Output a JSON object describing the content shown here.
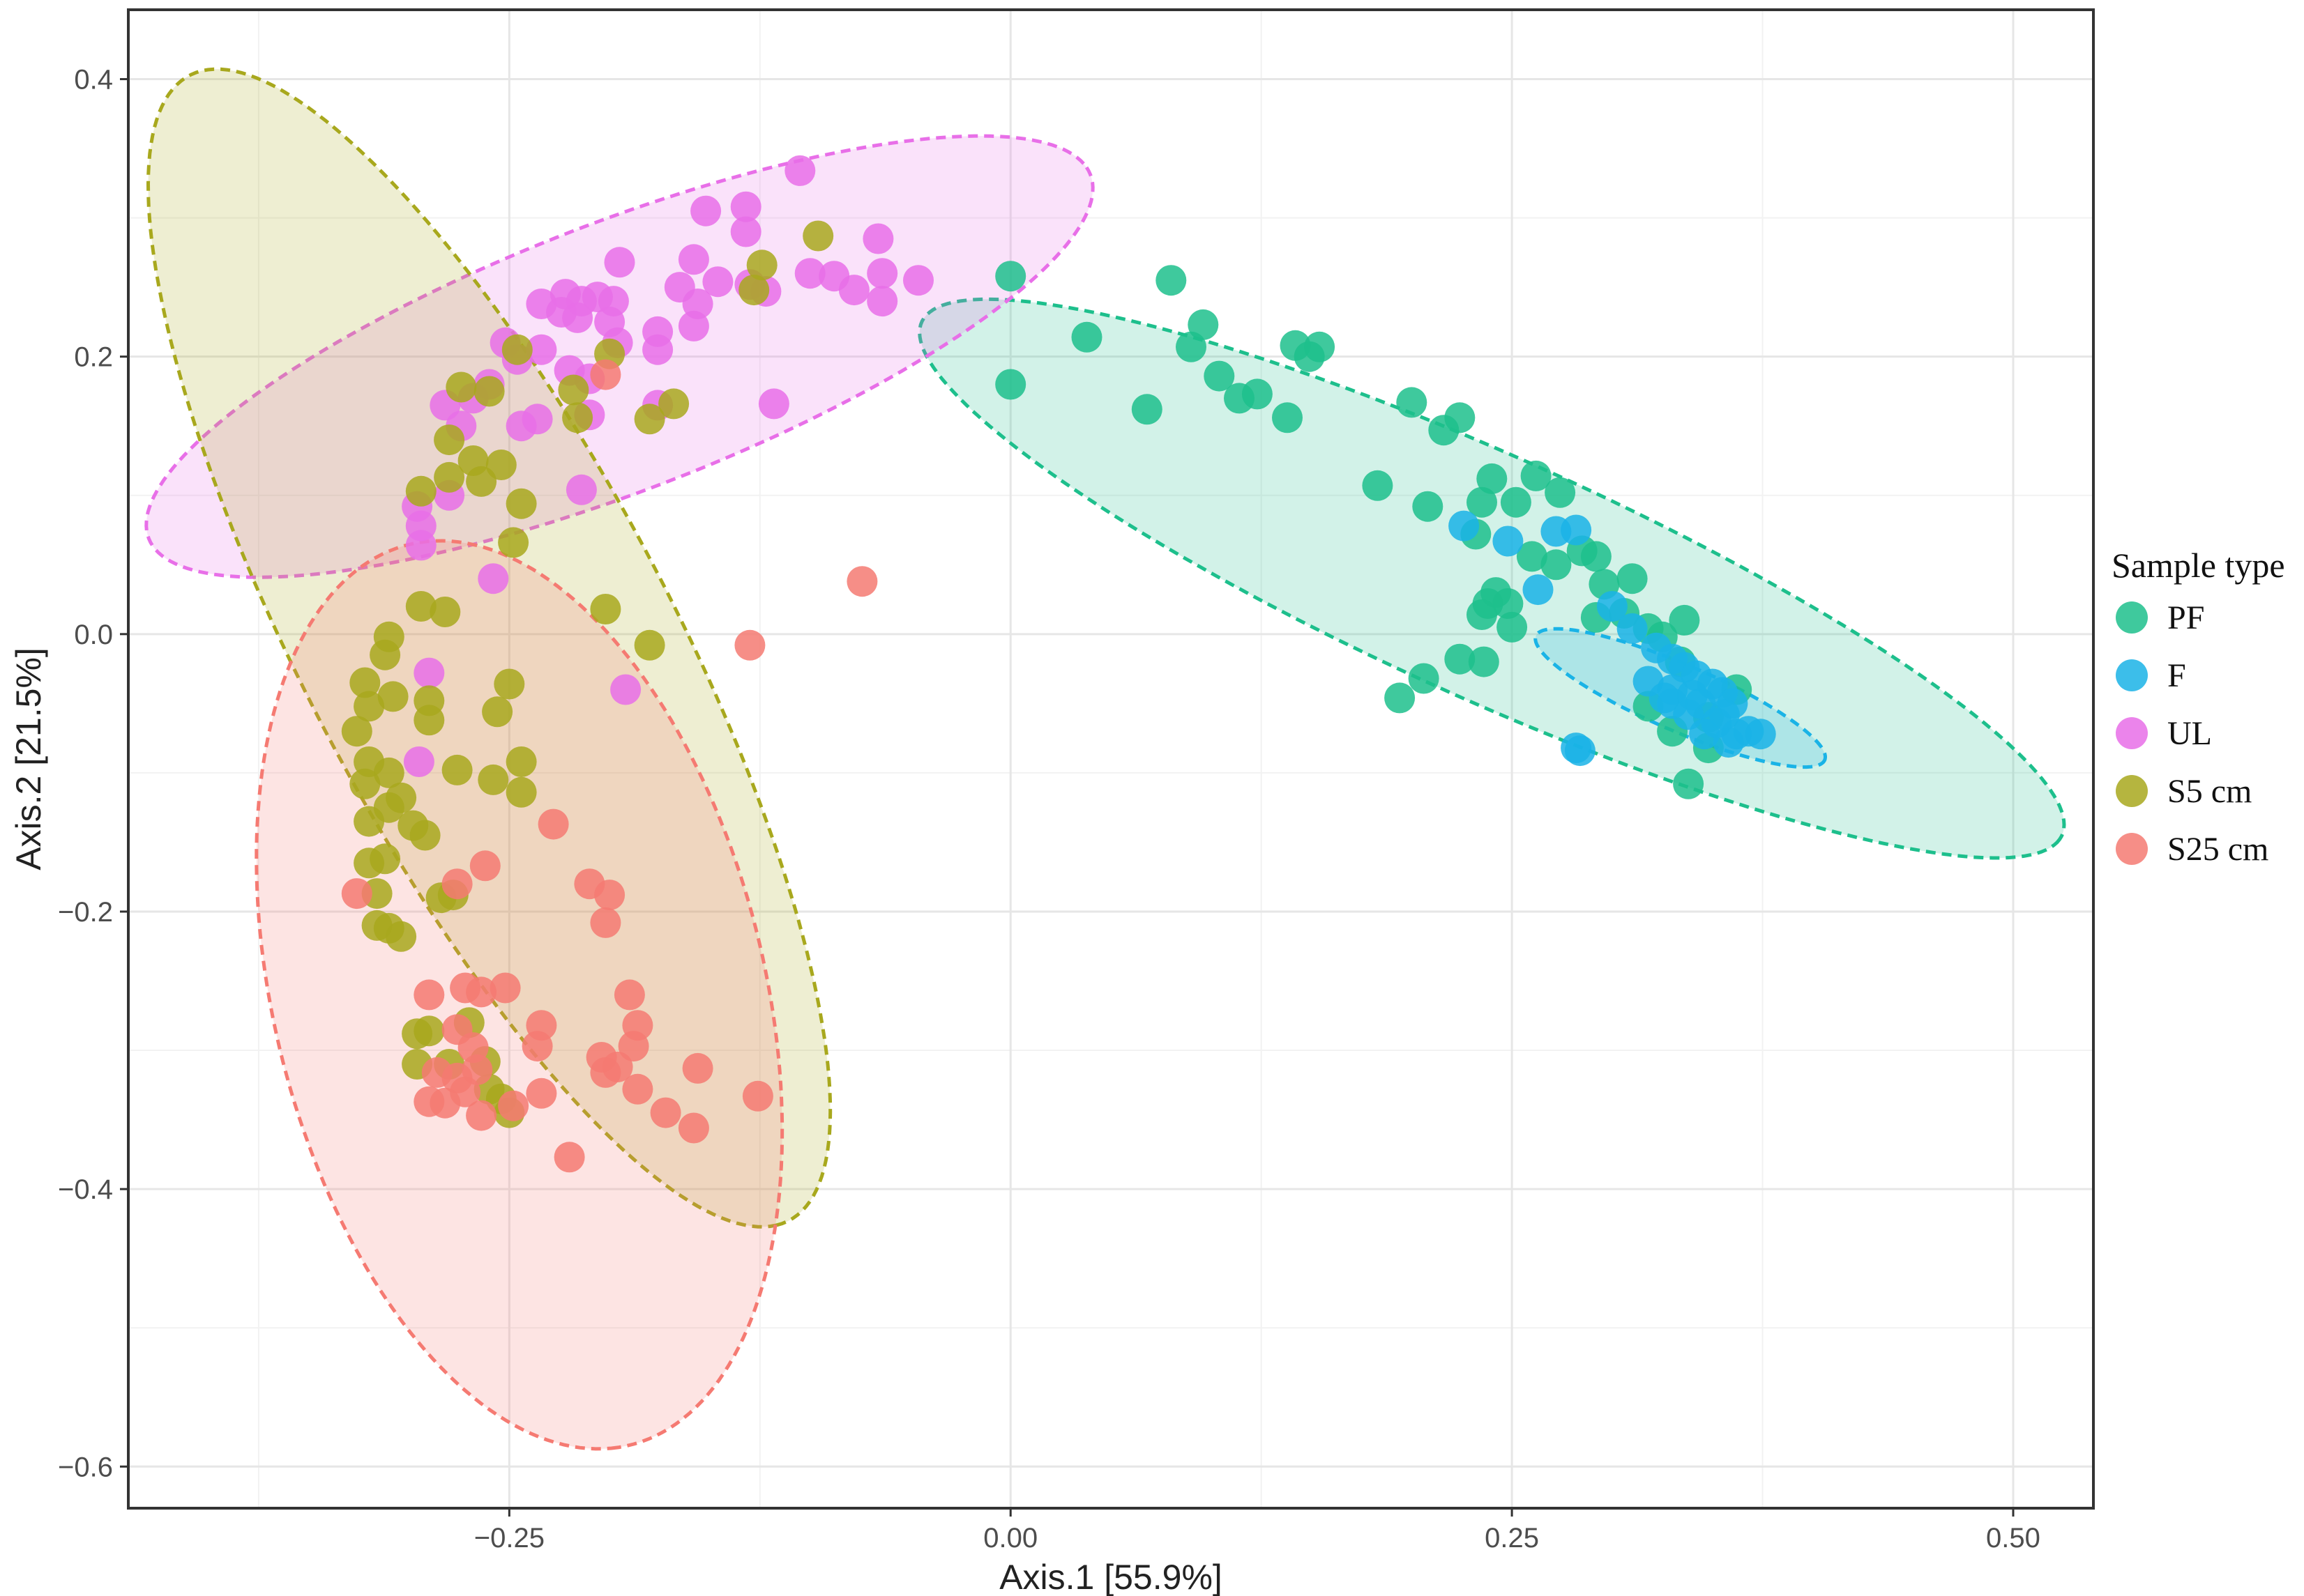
{
  "chart_data": {
    "type": "scatter",
    "title": "",
    "xlabel": "Axis.1   [55.9%]",
    "ylabel": "Axis.2   [21.5%]",
    "xlim": [
      -0.44,
      0.54
    ],
    "ylim": [
      -0.63,
      0.45
    ],
    "x_ticks": [
      -0.25,
      0.0,
      0.25,
      0.5
    ],
    "x_tick_labels": [
      "−0.25",
      "0.00",
      "0.25",
      "0.50"
    ],
    "y_ticks": [
      0.4,
      0.2,
      0.0,
      -0.2,
      -0.4,
      -0.6
    ],
    "y_tick_labels": [
      "0.4",
      "0.2",
      "0.0",
      "−0.2",
      "−0.4",
      "−0.6"
    ],
    "grid": true,
    "legend": {
      "title": "Sample type",
      "position": "right"
    },
    "series": [
      {
        "name": "PF",
        "color": "#1dbf8c",
        "ellipse": {
          "cx": 0.24,
          "cy": 0.04,
          "rx": 0.34,
          "ry": 0.08,
          "angle_deg": -34
        },
        "points": [
          [
            0.0,
            0.258
          ],
          [
            0.0,
            0.18
          ],
          [
            0.038,
            0.214
          ],
          [
            0.08,
            0.255
          ],
          [
            0.09,
            0.207
          ],
          [
            0.096,
            0.223
          ],
          [
            0.104,
            0.186
          ],
          [
            0.114,
            0.17
          ],
          [
            0.123,
            0.173
          ],
          [
            0.068,
            0.162
          ],
          [
            0.142,
            0.208
          ],
          [
            0.149,
            0.2
          ],
          [
            0.154,
            0.207
          ],
          [
            0.138,
            0.156
          ],
          [
            0.2,
            0.167
          ],
          [
            0.216,
            0.147
          ],
          [
            0.224,
            0.156
          ],
          [
            0.183,
            0.107
          ],
          [
            0.208,
            0.092
          ],
          [
            0.24,
            0.112
          ],
          [
            0.262,
            0.114
          ],
          [
            0.274,
            0.102
          ],
          [
            0.235,
            0.095
          ],
          [
            0.252,
            0.095
          ],
          [
            0.232,
            0.072
          ],
          [
            0.26,
            0.056
          ],
          [
            0.272,
            0.05
          ],
          [
            0.285,
            0.06
          ],
          [
            0.292,
            0.056
          ],
          [
            0.296,
            0.036
          ],
          [
            0.31,
            0.04
          ],
          [
            0.238,
            0.022
          ],
          [
            0.242,
            0.03
          ],
          [
            0.248,
            0.022
          ],
          [
            0.235,
            0.014
          ],
          [
            0.25,
            0.005
          ],
          [
            0.292,
            0.012
          ],
          [
            0.306,
            0.015
          ],
          [
            0.318,
            0.004
          ],
          [
            0.336,
            0.01
          ],
          [
            0.325,
            -0.002
          ],
          [
            0.334,
            -0.02
          ],
          [
            0.224,
            -0.018
          ],
          [
            0.236,
            -0.02
          ],
          [
            0.206,
            -0.032
          ],
          [
            0.194,
            -0.046
          ],
          [
            0.318,
            -0.052
          ],
          [
            0.33,
            -0.07
          ],
          [
            0.348,
            -0.082
          ],
          [
            0.338,
            -0.108
          ],
          [
            0.348,
            -0.06
          ],
          [
            0.362,
            -0.04
          ]
        ]
      },
      {
        "name": "F",
        "color": "#1ab3e6",
        "ellipse": {
          "cx": 0.334,
          "cy": -0.046,
          "rx": 0.085,
          "ry": 0.022,
          "angle_deg": -33
        },
        "points": [
          [
            0.226,
            0.078
          ],
          [
            0.248,
            0.067
          ],
          [
            0.272,
            0.074
          ],
          [
            0.282,
            0.075
          ],
          [
            0.263,
            0.032
          ],
          [
            0.3,
            0.02
          ],
          [
            0.31,
            0.004
          ],
          [
            0.322,
            -0.01
          ],
          [
            0.33,
            -0.018
          ],
          [
            0.336,
            -0.024
          ],
          [
            0.342,
            -0.03
          ],
          [
            0.35,
            -0.036
          ],
          [
            0.355,
            -0.042
          ],
          [
            0.36,
            -0.05
          ],
          [
            0.344,
            -0.05
          ],
          [
            0.33,
            -0.04
          ],
          [
            0.338,
            -0.058
          ],
          [
            0.352,
            -0.064
          ],
          [
            0.362,
            -0.072
          ],
          [
            0.368,
            -0.07
          ],
          [
            0.374,
            -0.072
          ],
          [
            0.358,
            -0.078
          ],
          [
            0.346,
            -0.072
          ],
          [
            0.33,
            -0.05
          ],
          [
            0.318,
            -0.034
          ],
          [
            0.326,
            -0.046
          ],
          [
            0.284,
            -0.084
          ],
          [
            0.282,
            -0.082
          ],
          [
            0.34,
            -0.044
          ],
          [
            0.356,
            -0.058
          ]
        ]
      },
      {
        "name": "UL",
        "color": "#e86fe8",
        "ellipse": {
          "cx": -0.195,
          "cy": 0.2,
          "rx": 0.27,
          "ry": 0.09,
          "angle_deg": 31
        },
        "points": [
          [
            -0.105,
            0.334
          ],
          [
            -0.152,
            0.305
          ],
          [
            -0.132,
            0.308
          ],
          [
            -0.132,
            0.29
          ],
          [
            -0.066,
            0.285
          ],
          [
            -0.195,
            0.268
          ],
          [
            -0.158,
            0.27
          ],
          [
            -0.165,
            0.25
          ],
          [
            -0.156,
            0.238
          ],
          [
            -0.146,
            0.254
          ],
          [
            -0.13,
            0.252
          ],
          [
            -0.122,
            0.247
          ],
          [
            -0.1,
            0.26
          ],
          [
            -0.088,
            0.258
          ],
          [
            -0.078,
            0.248
          ],
          [
            -0.064,
            0.26
          ],
          [
            -0.046,
            0.255
          ],
          [
            -0.064,
            0.24
          ],
          [
            -0.158,
            0.222
          ],
          [
            -0.176,
            0.218
          ],
          [
            -0.176,
            0.205
          ],
          [
            -0.234,
            0.238
          ],
          [
            -0.222,
            0.245
          ],
          [
            -0.214,
            0.24
          ],
          [
            -0.206,
            0.243
          ],
          [
            -0.198,
            0.24
          ],
          [
            -0.224,
            0.232
          ],
          [
            -0.216,
            0.228
          ],
          [
            -0.2,
            0.225
          ],
          [
            -0.196,
            0.21
          ],
          [
            -0.252,
            0.21
          ],
          [
            -0.246,
            0.198
          ],
          [
            -0.234,
            0.205
          ],
          [
            -0.22,
            0.19
          ],
          [
            -0.21,
            0.184
          ],
          [
            -0.26,
            0.18
          ],
          [
            -0.268,
            0.17
          ],
          [
            -0.282,
            0.165
          ],
          [
            -0.274,
            0.15
          ],
          [
            -0.244,
            0.15
          ],
          [
            -0.236,
            0.155
          ],
          [
            -0.21,
            0.158
          ],
          [
            -0.176,
            0.165
          ],
          [
            -0.118,
            0.166
          ],
          [
            -0.28,
            0.1
          ],
          [
            -0.296,
            0.092
          ],
          [
            -0.294,
            0.078
          ],
          [
            -0.294,
            0.064
          ],
          [
            -0.214,
            0.104
          ],
          [
            -0.258,
            0.04
          ],
          [
            -0.29,
            -0.028
          ],
          [
            -0.192,
            -0.04
          ],
          [
            -0.295,
            -0.092
          ]
        ]
      },
      {
        "name": "S5 cm",
        "color": "#a8a81d",
        "ellipse": {
          "cx": -0.26,
          "cy": -0.01,
          "rx": 0.44,
          "ry": 0.097,
          "angle_deg": -71
        },
        "points": [
          [
            -0.096,
            0.287
          ],
          [
            -0.124,
            0.266
          ],
          [
            -0.128,
            0.248
          ],
          [
            -0.246,
            0.205
          ],
          [
            -0.218,
            0.176
          ],
          [
            -0.2,
            0.202
          ],
          [
            -0.216,
            0.156
          ],
          [
            -0.26,
            0.175
          ],
          [
            -0.274,
            0.178
          ],
          [
            -0.168,
            0.166
          ],
          [
            -0.18,
            0.155
          ],
          [
            -0.28,
            0.14
          ],
          [
            -0.268,
            0.125
          ],
          [
            -0.254,
            0.122
          ],
          [
            -0.294,
            0.103
          ],
          [
            -0.264,
            0.11
          ],
          [
            -0.28,
            0.113
          ],
          [
            -0.244,
            0.094
          ],
          [
            -0.294,
            0.02
          ],
          [
            -0.282,
            0.016
          ],
          [
            -0.248,
            0.066
          ],
          [
            -0.202,
            0.018
          ],
          [
            -0.18,
            -0.008
          ],
          [
            -0.31,
            -0.002
          ],
          [
            -0.312,
            -0.015
          ],
          [
            -0.322,
            -0.035
          ],
          [
            -0.308,
            -0.045
          ],
          [
            -0.32,
            -0.052
          ],
          [
            -0.29,
            -0.048
          ],
          [
            -0.29,
            -0.062
          ],
          [
            -0.256,
            -0.056
          ],
          [
            -0.25,
            -0.036
          ],
          [
            -0.326,
            -0.07
          ],
          [
            -0.32,
            -0.092
          ],
          [
            -0.31,
            -0.1
          ],
          [
            -0.322,
            -0.108
          ],
          [
            -0.304,
            -0.118
          ],
          [
            -0.276,
            -0.098
          ],
          [
            -0.258,
            -0.105
          ],
          [
            -0.244,
            -0.114
          ],
          [
            -0.244,
            -0.092
          ],
          [
            -0.32,
            -0.135
          ],
          [
            -0.31,
            -0.125
          ],
          [
            -0.298,
            -0.138
          ],
          [
            -0.292,
            -0.145
          ],
          [
            -0.32,
            -0.165
          ],
          [
            -0.312,
            -0.162
          ],
          [
            -0.316,
            -0.187
          ],
          [
            -0.316,
            -0.21
          ],
          [
            -0.31,
            -0.212
          ],
          [
            -0.304,
            -0.218
          ],
          [
            -0.284,
            -0.19
          ],
          [
            -0.278,
            -0.188
          ],
          [
            -0.296,
            -0.288
          ],
          [
            -0.29,
            -0.286
          ],
          [
            -0.296,
            -0.31
          ],
          [
            -0.28,
            -0.31
          ],
          [
            -0.27,
            -0.28
          ],
          [
            -0.262,
            -0.308
          ],
          [
            -0.26,
            -0.328
          ],
          [
            -0.254,
            -0.335
          ],
          [
            -0.25,
            -0.345
          ]
        ]
      },
      {
        "name": "S25 cm",
        "color": "#f57a72",
        "ellipse": {
          "cx": -0.245,
          "cy": -0.26,
          "rx": 0.33,
          "ry": 0.124,
          "angle_deg": -82
        },
        "points": [
          [
            -0.074,
            0.038
          ],
          [
            -0.13,
            -0.008
          ],
          [
            -0.202,
            0.187
          ],
          [
            -0.228,
            -0.137
          ],
          [
            -0.262,
            -0.167
          ],
          [
            -0.276,
            -0.18
          ],
          [
            -0.21,
            -0.18
          ],
          [
            -0.2,
            -0.188
          ],
          [
            -0.202,
            -0.208
          ],
          [
            -0.326,
            -0.187
          ],
          [
            -0.29,
            -0.26
          ],
          [
            -0.272,
            -0.255
          ],
          [
            -0.264,
            -0.258
          ],
          [
            -0.252,
            -0.255
          ],
          [
            -0.19,
            -0.26
          ],
          [
            -0.186,
            -0.282
          ],
          [
            -0.234,
            -0.282
          ],
          [
            -0.236,
            -0.297
          ],
          [
            -0.188,
            -0.297
          ],
          [
            -0.276,
            -0.285
          ],
          [
            -0.268,
            -0.298
          ],
          [
            -0.286,
            -0.316
          ],
          [
            -0.276,
            -0.32
          ],
          [
            -0.266,
            -0.314
          ],
          [
            -0.272,
            -0.33
          ],
          [
            -0.282,
            -0.338
          ],
          [
            -0.29,
            -0.337
          ],
          [
            -0.264,
            -0.347
          ],
          [
            -0.248,
            -0.34
          ],
          [
            -0.204,
            -0.305
          ],
          [
            -0.196,
            -0.312
          ],
          [
            -0.202,
            -0.316
          ],
          [
            -0.186,
            -0.328
          ],
          [
            -0.172,
            -0.345
          ],
          [
            -0.158,
            -0.356
          ],
          [
            -0.156,
            -0.313
          ],
          [
            -0.126,
            -0.333
          ],
          [
            -0.234,
            -0.331
          ],
          [
            -0.22,
            -0.377
          ]
        ]
      }
    ]
  }
}
